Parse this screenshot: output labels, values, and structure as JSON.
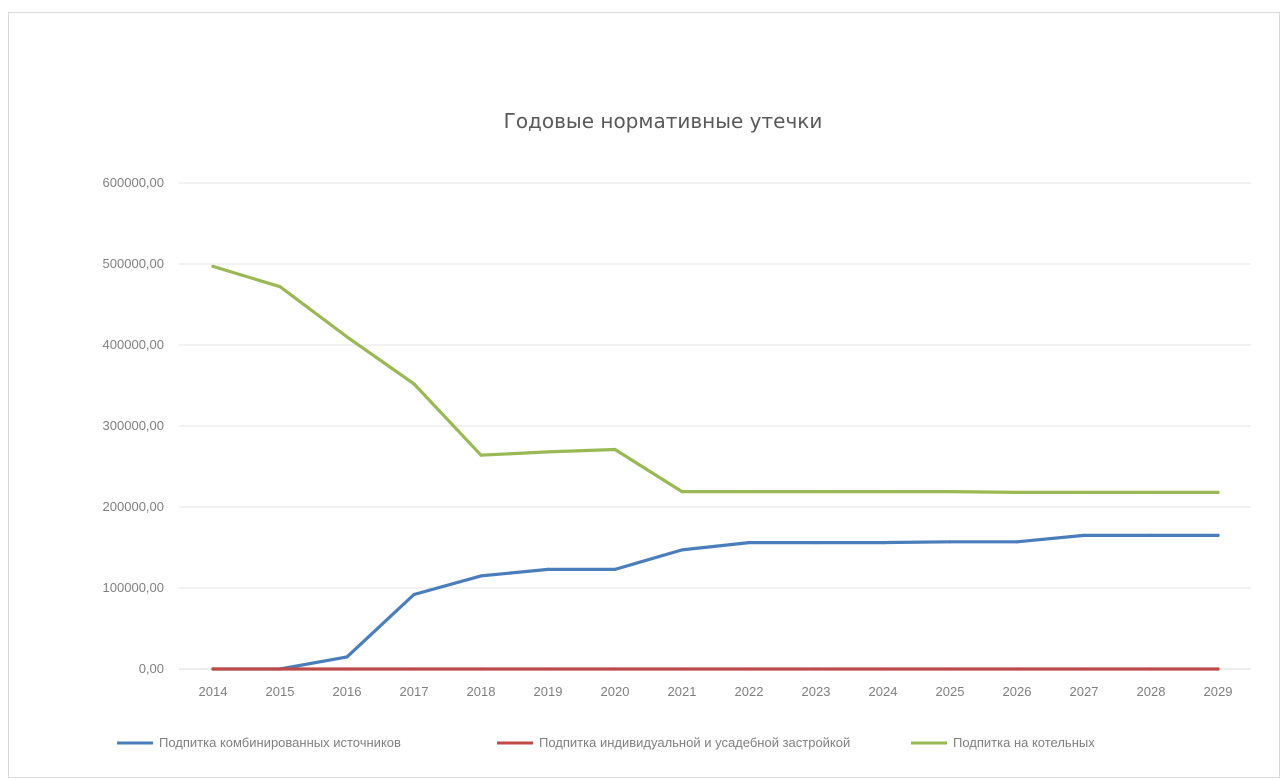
{
  "chart_data": {
    "type": "line",
    "title": "Годовые нормативные утечки",
    "xlabel": "",
    "ylabel": "",
    "categories": [
      "2014",
      "2015",
      "2016",
      "2017",
      "2018",
      "2019",
      "2020",
      "2021",
      "2022",
      "2023",
      "2024",
      "2025",
      "2026",
      "2027",
      "2028",
      "2029"
    ],
    "ylim": [
      0,
      600000
    ],
    "yticks": [
      "0,00",
      "100000,00",
      "200000,00",
      "300000,00",
      "400000,00",
      "500000,00",
      "600000,00"
    ],
    "yticks_values": [
      0,
      100000,
      200000,
      300000,
      400000,
      500000,
      600000
    ],
    "grid": true,
    "legend_position": "bottom",
    "series": [
      {
        "name": "Подпитка комбинированных источников",
        "color": "#4a7ebb",
        "values": [
          0,
          0,
          15000,
          92000,
          115000,
          123000,
          123000,
          147000,
          156000,
          156000,
          156000,
          157000,
          157000,
          165000,
          165000,
          165000
        ]
      },
      {
        "name": "Подпитка индивидуальной и усадебной застройкой",
        "color": "#be4b48",
        "values": [
          0,
          0,
          0,
          0,
          0,
          0,
          0,
          0,
          0,
          0,
          0,
          0,
          0,
          0,
          0,
          0
        ]
      },
      {
        "name": "Подпитка на котельных",
        "color": "#98b954",
        "values": [
          497000,
          472000,
          410000,
          352000,
          264000,
          268000,
          271000,
          219000,
          219000,
          219000,
          219000,
          219000,
          218000,
          218000,
          218000,
          218000
        ]
      }
    ]
  }
}
